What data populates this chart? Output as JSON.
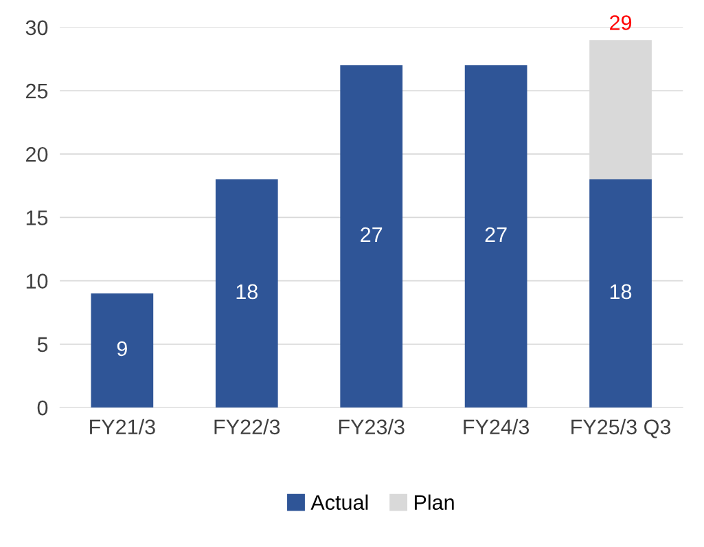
{
  "chart_data": {
    "type": "bar",
    "stacked": true,
    "categories": [
      "FY21/3",
      "FY22/3",
      "FY23/3",
      "FY24/3",
      "FY25/3 Q3"
    ],
    "series": [
      {
        "name": "Actual",
        "color": "#2f5597",
        "values": [
          9,
          18,
          27,
          27,
          18
        ],
        "value_labels": [
          "9",
          "18",
          "27",
          "27",
          "18"
        ]
      },
      {
        "name": "Plan",
        "color": "#d9d9d9",
        "values": [
          null,
          null,
          null,
          null,
          11
        ]
      }
    ],
    "totals": [
      null,
      null,
      null,
      null,
      "29"
    ],
    "ylim": [
      0,
      30
    ],
    "yticks": [
      0,
      5,
      10,
      15,
      20,
      25,
      30
    ],
    "grid": "y",
    "legend": "bottom"
  }
}
